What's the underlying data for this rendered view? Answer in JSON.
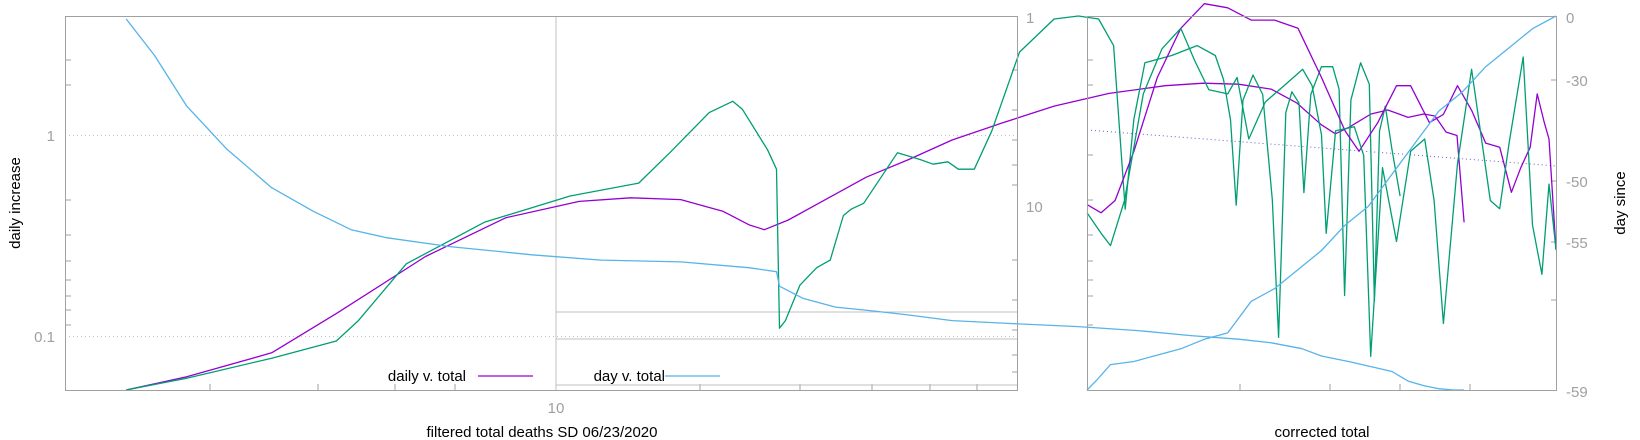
{
  "colors": {
    "daily": "#9400d3",
    "green": "#009e73",
    "day": "#56b4e9",
    "grid": "#c0c0c0",
    "frame": "#a0a0a0",
    "ref": "#6a5acd",
    "text": "#000000",
    "tick_text": "#a0a0a0"
  },
  "chart_data": [
    {
      "type": "line",
      "xlabel": "filtered total deaths SD 06/23/2020",
      "ylabel": "daily increase",
      "x_scale": "log",
      "y_scale": "log",
      "x_ticks": [
        "10"
      ],
      "y_ticks": [
        "1",
        "0.1"
      ],
      "inset_ticks": [
        "1",
        "10"
      ],
      "legend": [
        "daily v. total",
        "day v. total"
      ],
      "legend_position": "bottom-center",
      "grid": "dotted horizontal at 1 and 0.1",
      "series": [
        {
          "name": "daily v. total",
          "color": "#9400d3",
          "points": [
            [
              4.05,
              0.053
            ],
            [
              4.6,
              0.063
            ],
            [
              5.5,
              0.083
            ],
            [
              6.3,
              0.13
            ],
            [
              7.6,
              0.25
            ],
            [
              9.0,
              0.39
            ],
            [
              10.5,
              0.47
            ],
            [
              11.7,
              0.49
            ],
            [
              13.0,
              0.48
            ],
            [
              14.2,
              0.42
            ],
            [
              15.0,
              0.36
            ],
            [
              15.5,
              0.34
            ],
            [
              16.3,
              0.38
            ],
            [
              17.5,
              0.47
            ],
            [
              19.2,
              0.62
            ],
            [
              21.0,
              0.76
            ],
            [
              23.0,
              0.95
            ],
            [
              25.5,
              1.15
            ],
            [
              28.5,
              1.4
            ],
            [
              32.0,
              1.62
            ],
            [
              36.0,
              1.77
            ],
            [
              39.0,
              1.82
            ],
            [
              42.0,
              1.8
            ],
            [
              45.0,
              1.7
            ],
            [
              47.5,
              1.45
            ],
            [
              50.0,
              1.13
            ],
            [
              51.5,
              1.02
            ],
            [
              53.0,
              1.1
            ],
            [
              55.5,
              1.28
            ],
            [
              57.5,
              1.34
            ],
            [
              60.0,
              1.23
            ],
            [
              62.0,
              1.28
            ],
            [
              63.5,
              1.25
            ],
            [
              65.0,
              1.04
            ],
            [
              66.5,
              1.0
            ],
            [
              67.5,
              0.37
            ]
          ]
        },
        {
          "color": "#009e73",
          "points": [
            [
              4.05,
              0.053
            ],
            [
              4.6,
              0.062
            ],
            [
              5.5,
              0.078
            ],
            [
              6.3,
              0.095
            ],
            [
              6.6,
              0.12
            ],
            [
              7.3,
              0.23
            ],
            [
              8.6,
              0.37
            ],
            [
              10.3,
              0.5
            ],
            [
              11.9,
              0.58
            ],
            [
              12.7,
              0.82
            ],
            [
              13.8,
              1.3
            ],
            [
              14.5,
              1.48
            ],
            [
              14.8,
              1.35
            ],
            [
              15.6,
              0.85
            ],
            [
              15.9,
              0.68
            ],
            [
              16.0,
              0.11
            ],
            [
              16.2,
              0.12
            ],
            [
              16.7,
              0.18
            ],
            [
              17.3,
              0.22
            ],
            [
              17.8,
              0.24
            ],
            [
              18.3,
              0.4
            ],
            [
              18.6,
              0.43
            ],
            [
              19.1,
              0.46
            ],
            [
              20.5,
              0.82
            ],
            [
              21.5,
              0.76
            ],
            [
              22.1,
              0.72
            ],
            [
              22.8,
              0.74
            ],
            [
              23.3,
              0.68
            ],
            [
              24.1,
              0.68
            ],
            [
              25.0,
              1.05
            ],
            [
              26.5,
              2.6
            ],
            [
              28.5,
              3.8
            ],
            [
              30.0,
              4.4
            ],
            [
              31.3,
              3.8
            ],
            [
              32.3,
              2.8
            ],
            [
              33.1,
              0.43
            ],
            [
              33.7,
              1.2
            ],
            [
              34.5,
              2.3
            ],
            [
              36.5,
              2.5
            ],
            [
              38.5,
              2.8
            ],
            [
              40.0,
              2.5
            ],
            [
              40.7,
              1.9
            ],
            [
              41.3,
              1.2
            ],
            [
              41.8,
              0.45
            ],
            [
              42.4,
              1.5
            ],
            [
              43.3,
              2.0
            ],
            [
              44.2,
              1.6
            ],
            [
              45.1,
              0.48
            ],
            [
              45.7,
              0.099
            ],
            [
              46.4,
              1.3
            ],
            [
              47.0,
              1.65
            ],
            [
              47.7,
              1.45
            ],
            [
              48.2,
              0.52
            ],
            [
              48.9,
              1.6
            ],
            [
              50.0,
              2.2
            ],
            [
              51.2,
              2.2
            ],
            [
              51.9,
              1.7
            ],
            [
              52.5,
              0.16
            ],
            [
              53.2,
              1.5
            ],
            [
              54.3,
              2.3
            ],
            [
              55.3,
              1.8
            ],
            [
              55.9,
              0.15
            ],
            [
              56.5,
              1.05
            ],
            [
              57.2,
              1.4
            ],
            [
              58.0,
              0.85
            ],
            [
              59.0,
              0.5
            ]
          ]
        },
        {
          "name": "day v. total",
          "color": "#56b4e9",
          "points": [
            [
              4.05,
              3.8
            ],
            [
              4.3,
              2.5
            ],
            [
              4.6,
              1.4
            ],
            [
              5.0,
              0.86
            ],
            [
              5.5,
              0.55
            ],
            [
              6.0,
              0.42
            ],
            [
              6.5,
              0.34
            ],
            [
              7.0,
              0.31
            ],
            [
              8.0,
              0.28
            ],
            [
              9.5,
              0.255
            ],
            [
              11.0,
              0.24
            ],
            [
              13.0,
              0.235
            ],
            [
              15.0,
              0.22
            ],
            [
              15.9,
              0.21
            ],
            [
              16.0,
              0.178
            ],
            [
              16.8,
              0.155
            ],
            [
              18.0,
              0.14
            ],
            [
              19.5,
              0.134
            ],
            [
              21.0,
              0.128
            ],
            [
              23.0,
              0.12
            ],
            [
              26.0,
              0.116
            ],
            [
              30.0,
              0.112
            ],
            [
              34.0,
              0.107
            ],
            [
              38.0,
              0.101
            ],
            [
              42.0,
              0.097
            ],
            [
              45.0,
              0.093
            ],
            [
              48.0,
              0.087
            ],
            [
              50.0,
              0.08
            ],
            [
              53.0,
              0.075
            ],
            [
              56.0,
              0.07
            ],
            [
              58.0,
              0.067
            ],
            [
              60.0,
              0.06
            ],
            [
              62.0,
              0.057
            ],
            [
              64.0,
              0.055
            ],
            [
              66.0,
              0.054
            ],
            [
              67.5,
              0.052
            ]
          ]
        }
      ]
    },
    {
      "type": "line",
      "xlabel": "corrected total",
      "ylabel": "day since",
      "y_ticks_right": [
        "0",
        "-30",
        "-50",
        "-55",
        "-59"
      ],
      "series": [
        {
          "color": "#9400d3",
          "points": [
            [
              0.0,
              0.57
            ],
            [
              0.03,
              0.55
            ],
            [
              0.06,
              0.58
            ],
            [
              0.1,
              0.7
            ],
            [
              0.15,
              0.88
            ],
            [
              0.2,
              1.0
            ],
            [
              0.25,
              1.06
            ],
            [
              0.3,
              1.05
            ],
            [
              0.35,
              1.02
            ],
            [
              0.4,
              1.02
            ],
            [
              0.45,
              1.0
            ],
            [
              0.5,
              0.88
            ],
            [
              0.55,
              0.75
            ],
            [
              0.58,
              0.7
            ],
            [
              0.62,
              0.77
            ],
            [
              0.66,
              0.86
            ],
            [
              0.69,
              0.86
            ],
            [
              0.73,
              0.77
            ],
            [
              0.76,
              0.79
            ],
            [
              0.79,
              0.86
            ],
            [
              0.82,
              0.8
            ],
            [
              0.85,
              0.72
            ],
            [
              0.88,
              0.71
            ],
            [
              0.905,
              0.6
            ],
            [
              0.925,
              0.66
            ],
            [
              0.945,
              0.71
            ],
            [
              0.96,
              0.84
            ],
            [
              0.975,
              0.77
            ],
            [
              0.985,
              0.73
            ],
            [
              1.0,
              0.46
            ]
          ]
        },
        {
          "color": "#009e73",
          "points": [
            [
              0.0,
              0.55
            ],
            [
              0.03,
              0.5
            ],
            [
              0.05,
              0.47
            ],
            [
              0.08,
              0.58
            ],
            [
              0.12,
              0.84
            ],
            [
              0.16,
              0.95
            ],
            [
              0.2,
              1.0
            ],
            [
              0.23,
              0.92
            ],
            [
              0.26,
              0.85
            ],
            [
              0.3,
              0.84
            ],
            [
              0.32,
              0.88
            ],
            [
              0.345,
              0.73
            ],
            [
              0.38,
              0.82
            ],
            [
              0.42,
              0.86
            ],
            [
              0.46,
              0.9
            ],
            [
              0.48,
              0.86
            ],
            [
              0.5,
              0.74
            ],
            [
              0.51,
              0.5
            ],
            [
              0.53,
              0.75
            ],
            [
              0.57,
              0.76
            ],
            [
              0.59,
              0.69
            ],
            [
              0.605,
              0.2
            ],
            [
              0.63,
              0.66
            ],
            [
              0.66,
              0.48
            ],
            [
              0.69,
              0.7
            ],
            [
              0.72,
              0.73
            ],
            [
              0.74,
              0.58
            ],
            [
              0.76,
              0.28
            ],
            [
              0.79,
              0.67
            ],
            [
              0.82,
              0.9
            ],
            [
              0.86,
              0.58
            ],
            [
              0.88,
              0.56
            ],
            [
              0.9,
              0.72
            ],
            [
              0.93,
              0.93
            ],
            [
              0.95,
              0.52
            ],
            [
              0.97,
              0.4
            ],
            [
              0.985,
              0.62
            ],
            [
              1.0,
              0.46
            ]
          ]
        },
        {
          "color": "#56b4e9",
          "points": [
            [
              0.0,
              -59.0
            ],
            [
              0.02,
              -57.5
            ],
            [
              0.05,
              -55.0
            ],
            [
              0.1,
              -54.5
            ],
            [
              0.15,
              -53.5
            ],
            [
              0.2,
              -52.5
            ],
            [
              0.25,
              -51.0
            ],
            [
              0.3,
              -50.0
            ],
            [
              0.35,
              -45.0
            ],
            [
              0.4,
              -43.0
            ],
            [
              0.45,
              -40.0
            ],
            [
              0.5,
              -37.0
            ],
            [
              0.55,
              -33.0
            ],
            [
              0.6,
              -30.0
            ],
            [
              0.65,
              -25.0
            ],
            [
              0.7,
              -20.0
            ],
            [
              0.75,
              -15.0
            ],
            [
              0.8,
              -12.0
            ],
            [
              0.85,
              -8.0
            ],
            [
              0.9,
              -5.0
            ],
            [
              0.95,
              -2.0
            ],
            [
              1.0,
              0.0
            ]
          ]
        }
      ]
    }
  ]
}
